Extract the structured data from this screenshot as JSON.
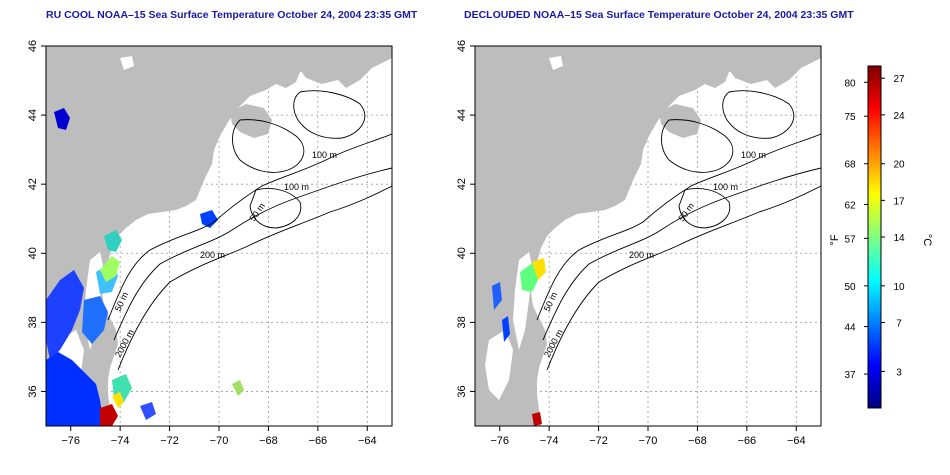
{
  "panels": [
    {
      "title": "RU COOL NOAA–15 Sea Surface Temperature October 24, 2004 23:35 GMT",
      "contour_labels": [
        "100 m",
        "100 m",
        "50 m",
        "200 m",
        "50 m",
        "2000 m"
      ]
    },
    {
      "title": "DECLOUDED NOAA–15 Sea Surface Temperature October 24, 2004 23:35 GMT",
      "contour_labels": [
        "100 m",
        "100 m",
        "50 m",
        "200 m",
        "50 m",
        "2000 m"
      ]
    }
  ],
  "map_axes": {
    "x_ticks": [
      "−76",
      "−74",
      "−72",
      "−70",
      "−68",
      "−66",
      "−64"
    ],
    "y_ticks": [
      "46",
      "44",
      "42",
      "40",
      "38",
      "36"
    ],
    "xlim": [
      -77,
      -63
    ],
    "ylim": [
      35,
      46
    ],
    "grid": "dotted"
  },
  "colorbar": {
    "celsius_label": "°C",
    "fahrenheit_label": "°F",
    "celsius_ticks": [
      "27",
      "24",
      "20",
      "17",
      "14",
      "10",
      "7",
      "3"
    ],
    "fahrenheit_ticks": [
      "80",
      "75",
      "68",
      "62",
      "57",
      "50",
      "44",
      "37"
    ],
    "range_c": [
      0,
      28
    ],
    "colors": [
      "#00007f",
      "#0000ff",
      "#0080ff",
      "#00ffff",
      "#80ff80",
      "#ffff00",
      "#ff8000",
      "#ff0000",
      "#7f0000"
    ]
  },
  "colors": {
    "land": "#bdbdbd",
    "water": "#ffffff",
    "contour": "#000000",
    "title": "#1a1aa6",
    "grid": "#9a9a9a"
  }
}
